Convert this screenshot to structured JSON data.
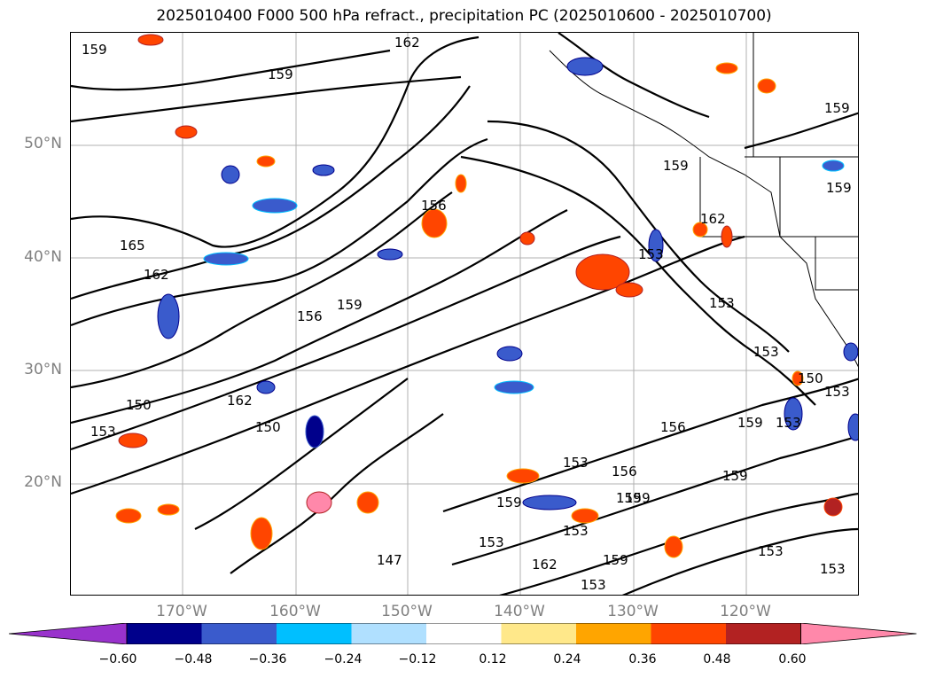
{
  "title": "2025010400 F000 500 hPa refract., precipitation PC (2025010600 - 2025010700)",
  "lat_labels": [
    "50°N",
    "40°N",
    "30°N",
    "20°N"
  ],
  "lon_labels": [
    "170°W",
    "160°W",
    "150°W",
    "140°W",
    "130°W",
    "120°W"
  ],
  "contour_labels": [
    "159",
    "162",
    "159",
    "159",
    "159",
    "159",
    "162",
    "165",
    "162",
    "156",
    "159",
    "156",
    "153",
    "153",
    "153",
    "150",
    "162",
    "150",
    "153",
    "150",
    "153",
    "153",
    "156",
    "156",
    "159",
    "159",
    "159",
    "153",
    "153",
    "153",
    "162",
    "159",
    "153",
    "159",
    "153",
    "159",
    "147",
    "153"
  ],
  "colorbar": {
    "ticks": [
      "−0.60",
      "−0.48",
      "−0.36",
      "−0.24",
      "−0.12",
      "0.12",
      "0.24",
      "0.36",
      "0.48",
      "0.60"
    ],
    "colors": [
      "#9932cc",
      "#00008b",
      "#3a5bcc",
      "#00bfff",
      "#b0e0ff",
      "#ffffff",
      "#ffe88a",
      "#ffa500",
      "#ff4500",
      "#b22222",
      "#ff88aa"
    ]
  }
}
